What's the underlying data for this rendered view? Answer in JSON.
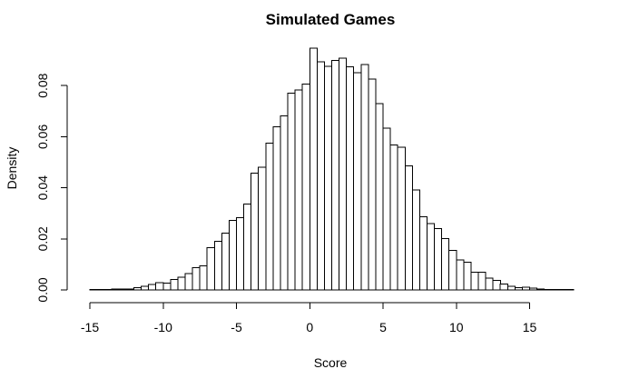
{
  "chart_data": {
    "type": "bar",
    "title": "Simulated Games",
    "xlabel": "Score",
    "ylabel": "Density",
    "xlim": [
      -15,
      18
    ],
    "ylim": [
      0,
      0.095
    ],
    "grid": false,
    "legend": "none",
    "bin_width": 0.5,
    "x_ticks": [
      {
        "value": -15,
        "label": "-15"
      },
      {
        "value": -10,
        "label": "-10"
      },
      {
        "value": -5,
        "label": "-5"
      },
      {
        "value": 0,
        "label": "0"
      },
      {
        "value": 5,
        "label": "5"
      },
      {
        "value": 10,
        "label": "10"
      },
      {
        "value": 15,
        "label": "15"
      }
    ],
    "y_ticks": [
      {
        "value": 0.0,
        "label": "0.00"
      },
      {
        "value": 0.02,
        "label": "0.02"
      },
      {
        "value": 0.04,
        "label": "0.04"
      },
      {
        "value": 0.06,
        "label": "0.06"
      },
      {
        "value": 0.08,
        "label": "0.08"
      }
    ],
    "bins": [
      {
        "x0": -15.0,
        "x1": -14.5,
        "value": 0.0002
      },
      {
        "x0": -14.5,
        "x1": -14.0,
        "value": 0.0002
      },
      {
        "x0": -14.0,
        "x1": -13.5,
        "value": 0.0001
      },
      {
        "x0": -13.5,
        "x1": -13.0,
        "value": 0.0003
      },
      {
        "x0": -13.0,
        "x1": -12.5,
        "value": 0.0003
      },
      {
        "x0": -12.5,
        "x1": -12.0,
        "value": 0.0004
      },
      {
        "x0": -12.0,
        "x1": -11.5,
        "value": 0.0009
      },
      {
        "x0": -11.5,
        "x1": -11.0,
        "value": 0.0015
      },
      {
        "x0": -11.0,
        "x1": -10.5,
        "value": 0.0021
      },
      {
        "x0": -10.5,
        "x1": -10.0,
        "value": 0.0029
      },
      {
        "x0": -10.0,
        "x1": -9.5,
        "value": 0.0027
      },
      {
        "x0": -9.5,
        "x1": -9.0,
        "value": 0.0041
      },
      {
        "x0": -9.0,
        "x1": -8.5,
        "value": 0.005
      },
      {
        "x0": -8.5,
        "x1": -8.0,
        "value": 0.0064
      },
      {
        "x0": -8.0,
        "x1": -7.5,
        "value": 0.0087
      },
      {
        "x0": -7.5,
        "x1": -7.0,
        "value": 0.0095
      },
      {
        "x0": -7.0,
        "x1": -6.5,
        "value": 0.0166
      },
      {
        "x0": -6.5,
        "x1": -6.0,
        "value": 0.019
      },
      {
        "x0": -6.0,
        "x1": -5.5,
        "value": 0.0223
      },
      {
        "x0": -5.5,
        "x1": -5.0,
        "value": 0.0273
      },
      {
        "x0": -5.0,
        "x1": -4.5,
        "value": 0.0282
      },
      {
        "x0": -4.5,
        "x1": -4.0,
        "value": 0.0337
      },
      {
        "x0": -4.0,
        "x1": -3.5,
        "value": 0.0457
      },
      {
        "x0": -3.5,
        "x1": -3.0,
        "value": 0.0481
      },
      {
        "x0": -3.0,
        "x1": -2.5,
        "value": 0.0575
      },
      {
        "x0": -2.5,
        "x1": -2.0,
        "value": 0.0639
      },
      {
        "x0": -2.0,
        "x1": -1.5,
        "value": 0.0681
      },
      {
        "x0": -1.5,
        "x1": -1.0,
        "value": 0.077
      },
      {
        "x0": -1.0,
        "x1": -0.5,
        "value": 0.0782
      },
      {
        "x0": -0.5,
        "x1": 0.0,
        "value": 0.0806
      },
      {
        "x0": 0.0,
        "x1": 0.5,
        "value": 0.0946
      },
      {
        "x0": 0.5,
        "x1": 1.0,
        "value": 0.0893
      },
      {
        "x0": 1.0,
        "x1": 1.5,
        "value": 0.0875
      },
      {
        "x0": 1.5,
        "x1": 2.0,
        "value": 0.0899
      },
      {
        "x0": 2.0,
        "x1": 2.5,
        "value": 0.0907
      },
      {
        "x0": 2.5,
        "x1": 3.0,
        "value": 0.0874
      },
      {
        "x0": 3.0,
        "x1": 3.5,
        "value": 0.0851
      },
      {
        "x0": 3.5,
        "x1": 4.0,
        "value": 0.0882
      },
      {
        "x0": 4.0,
        "x1": 4.5,
        "value": 0.0826
      },
      {
        "x0": 4.5,
        "x1": 5.0,
        "value": 0.073
      },
      {
        "x0": 5.0,
        "x1": 5.5,
        "value": 0.0634
      },
      {
        "x0": 5.5,
        "x1": 6.0,
        "value": 0.0567
      },
      {
        "x0": 6.0,
        "x1": 6.5,
        "value": 0.0558
      },
      {
        "x0": 6.5,
        "x1": 7.0,
        "value": 0.0485
      },
      {
        "x0": 7.0,
        "x1": 7.5,
        "value": 0.0392
      },
      {
        "x0": 7.5,
        "x1": 8.0,
        "value": 0.0287
      },
      {
        "x0": 8.0,
        "x1": 8.5,
        "value": 0.026
      },
      {
        "x0": 8.5,
        "x1": 9.0,
        "value": 0.0241
      },
      {
        "x0": 9.0,
        "x1": 9.5,
        "value": 0.0201
      },
      {
        "x0": 9.5,
        "x1": 10.0,
        "value": 0.0154
      },
      {
        "x0": 10.0,
        "x1": 10.5,
        "value": 0.0117
      },
      {
        "x0": 10.5,
        "x1": 11.0,
        "value": 0.0109
      },
      {
        "x0": 11.0,
        "x1": 11.5,
        "value": 0.0069
      },
      {
        "x0": 11.5,
        "x1": 12.0,
        "value": 0.007
      },
      {
        "x0": 12.0,
        "x1": 12.5,
        "value": 0.0047
      },
      {
        "x0": 12.5,
        "x1": 13.0,
        "value": 0.0038
      },
      {
        "x0": 13.0,
        "x1": 13.5,
        "value": 0.0023
      },
      {
        "x0": 13.5,
        "x1": 14.0,
        "value": 0.0014
      },
      {
        "x0": 14.0,
        "x1": 14.5,
        "value": 0.0009
      },
      {
        "x0": 14.5,
        "x1": 15.0,
        "value": 0.001
      },
      {
        "x0": 15.0,
        "x1": 15.5,
        "value": 0.0007
      },
      {
        "x0": 15.5,
        "x1": 16.0,
        "value": 0.0004
      },
      {
        "x0": 16.0,
        "x1": 16.5,
        "value": 0.0002
      },
      {
        "x0": 16.5,
        "x1": 17.0,
        "value": 0.0002
      },
      {
        "x0": 17.0,
        "x1": 17.5,
        "value": 0.0001
      },
      {
        "x0": 17.5,
        "x1": 18.0,
        "value": 0.0002
      }
    ]
  }
}
